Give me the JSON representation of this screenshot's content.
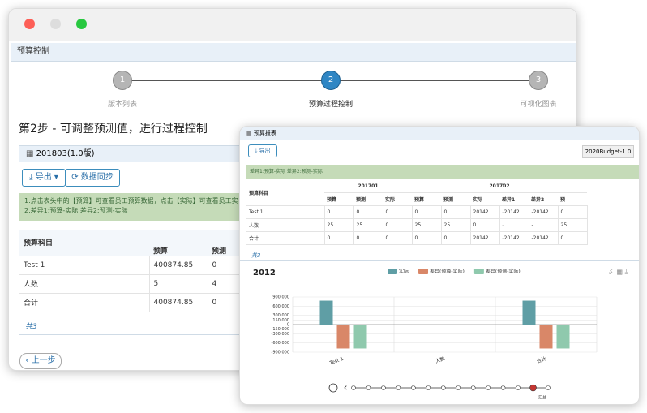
{
  "window1": {
    "panel_title": "预算控制",
    "steps": [
      {
        "number": "1",
        "label": "版本列表"
      },
      {
        "number": "2",
        "label": "预算过程控制"
      },
      {
        "number": "3",
        "label": "可视化图表"
      }
    ],
    "heading": "第2步 - 可调整预测值，进行过程控制",
    "version": "201803(1.0版)",
    "buttons": [
      "导出",
      "数据同步"
    ],
    "notice": [
      "1.点击表头中的【预算】可查看员工预算数据，点击【实际】可查看员工实",
      "2.差异1:预算-实际 差异2:预测-实际"
    ],
    "table": {
      "headers": [
        "预算科目",
        "预算",
        "预测"
      ],
      "rows": [
        [
          "Test 1",
          "400874.85",
          "0"
        ],
        [
          "人数",
          "5",
          "4"
        ],
        [
          "合计",
          "400874.85",
          "0"
        ]
      ]
    },
    "footer": "共3",
    "back": "上一步"
  },
  "window2": {
    "title": "预算报表",
    "export": "导出",
    "version": "2020Budget-1.0",
    "notice": "差异1:预算-实际 差异2:预测-实际",
    "table": {
      "subject": "预算科目",
      "periods": [
        "201701",
        "201702"
      ],
      "columns": [
        "预算",
        "预测",
        "实际",
        "预算",
        "预测",
        "实际",
        "差异1",
        "差异2",
        "预"
      ],
      "rows": [
        [
          "Test 1",
          "0",
          "0",
          "0",
          "0",
          "0",
          "20142",
          "-20142",
          "-20142",
          "0"
        ],
        [
          "人数",
          "25",
          "25",
          "0",
          "25",
          "25",
          "0",
          "-",
          "-",
          "25"
        ],
        [
          "合计",
          "0",
          "0",
          "0",
          "0",
          "0",
          "20142",
          "-20142",
          "-20142",
          "0"
        ]
      ]
    },
    "footer": "共3",
    "timeline_end": "汇总"
  },
  "chart_data": {
    "type": "bar",
    "title": "2012",
    "categories": [
      "Test 1",
      "人数",
      "合计"
    ],
    "series": [
      {
        "name": "实际",
        "color": "#5f9ea5",
        "values": [
          780000,
          0,
          780000
        ]
      },
      {
        "name": "差异(预算-实际)",
        "color": "#d98768",
        "values": [
          -780000,
          0,
          -780000
        ]
      },
      {
        "name": "差异(预测-实际)",
        "color": "#8fc9ad",
        "values": [
          -780000,
          0,
          -780000
        ]
      }
    ],
    "ylim": [
      -900000,
      900000
    ],
    "yticks": [
      {
        "value": 900000,
        "label": "900,000"
      },
      {
        "value": 600000,
        "label": "600,000"
      },
      {
        "value": 300000,
        "label": "300,000"
      },
      {
        "value": 150000,
        "label": "150,000"
      },
      0,
      {
        "value": -150000,
        "label": "-150,000"
      },
      {
        "value": -300000,
        "label": "-300,000"
      },
      {
        "value": -600000,
        "label": "-600,000"
      },
      {
        "value": -900000,
        "label": "-900,000"
      }
    ],
    "grid": true
  }
}
